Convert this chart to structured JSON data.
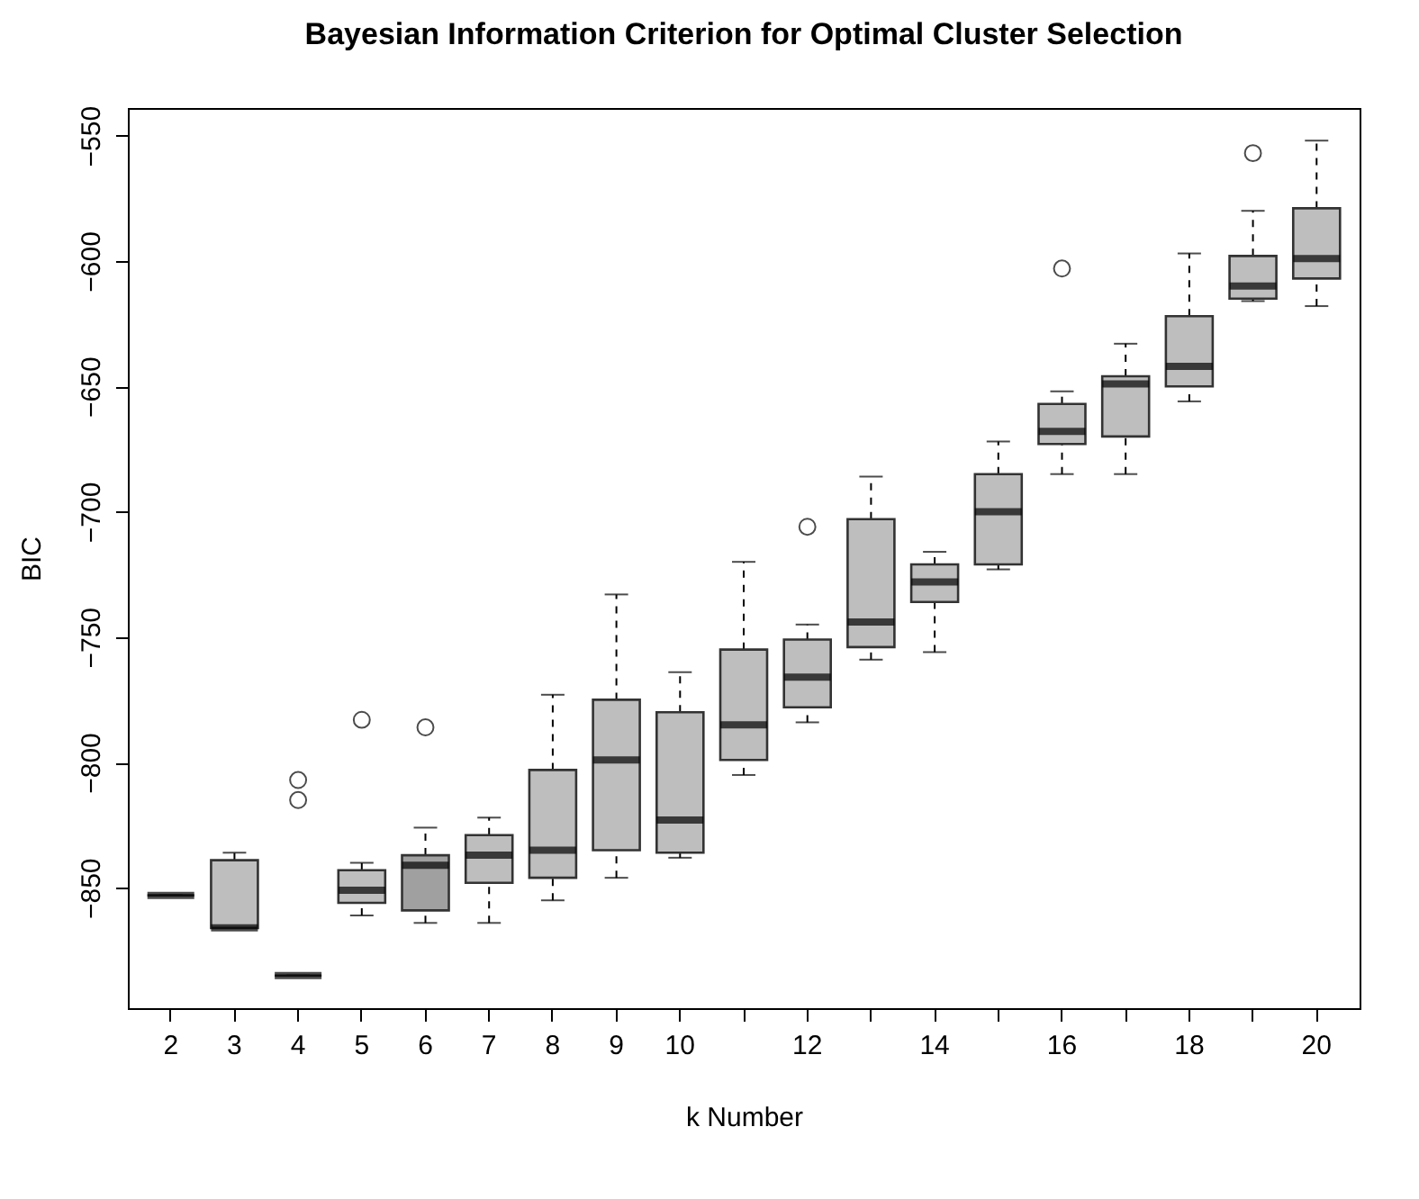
{
  "chart_data": {
    "type": "box",
    "title": "Bayesian Information Criterion for Optimal Cluster Selection",
    "xlabel": "k Number",
    "ylabel": "BIC",
    "categories": [
      "2",
      "3",
      "4",
      "5",
      "6",
      "7",
      "8",
      "9",
      "10",
      null,
      "12",
      null,
      "14",
      null,
      "16",
      null,
      "18",
      null,
      "20"
    ],
    "colors": [
      "#000000",
      "#bebebe",
      "#000000",
      "#bebebe",
      "#a0a0a0",
      "#bebebe",
      "#bebebe",
      "#bebebe",
      "#bebebe",
      "#bebebe",
      "#bebebe",
      "#bebebe",
      "#bebebe",
      "#bebebe",
      "#bebebe",
      "#bebebe",
      "#bebebe",
      "#bebebe",
      "#bebebe"
    ],
    "boxes": [
      {
        "low": -853,
        "q1": -853,
        "median": -853,
        "q3": -853,
        "high": -853
      },
      {
        "low": -866,
        "q1": -866,
        "median": -866,
        "q3": -839,
        "high": -836
      },
      {
        "low": -885,
        "q1": -885,
        "median": -885,
        "q3": -885,
        "high": -885,
        "outliers": [
          -807,
          -815
        ]
      },
      {
        "low": -861,
        "q1": -856,
        "median": -851,
        "q3": -843,
        "high": -840,
        "outliers": [
          -783
        ]
      },
      {
        "low": -864,
        "q1": -859,
        "median": -841,
        "q3": -837,
        "high": -826,
        "outliers": [
          -786
        ]
      },
      {
        "low": -864,
        "q1": -848,
        "median": -837,
        "q3": -829,
        "high": -822
      },
      {
        "low": -855,
        "q1": -846,
        "median": -835,
        "q3": -803,
        "high": -773
      },
      {
        "low": -846,
        "q1": -835,
        "median": -799,
        "q3": -775,
        "high": -733
      },
      {
        "low": -838,
        "q1": -836,
        "median": -823,
        "q3": -780,
        "high": -764
      },
      {
        "low": -805,
        "q1": -799,
        "median": -785,
        "q3": -755,
        "high": -720
      },
      {
        "low": -784,
        "q1": -778,
        "median": -766,
        "q3": -751,
        "high": -745,
        "outliers": [
          -706
        ]
      },
      {
        "low": -759,
        "q1": -754,
        "median": -744,
        "q3": -703,
        "high": -686
      },
      {
        "low": -756,
        "q1": -736,
        "median": -728,
        "q3": -721,
        "high": -716
      },
      {
        "low": -723,
        "q1": -721,
        "median": -700,
        "q3": -685,
        "high": -672
      },
      {
        "low": -685,
        "q1": -673,
        "median": -668,
        "q3": -657,
        "high": -652,
        "outliers": [
          -603
        ]
      },
      {
        "low": -685,
        "q1": -670,
        "median": -649,
        "q3": -646,
        "high": -633
      },
      {
        "low": -656,
        "q1": -650,
        "median": -642,
        "q3": -622,
        "high": -597
      },
      {
        "low": -616,
        "q1": -615,
        "median": -610,
        "q3": -598,
        "high": -580,
        "outliers": [
          -557
        ]
      },
      {
        "low": -618,
        "q1": -607,
        "median": -599,
        "q3": -579,
        "high": -552
      }
    ],
    "ylim": [
      -898,
      -539
    ],
    "yticks": [
      -550,
      -600,
      -650,
      -700,
      -750,
      -800,
      -850
    ],
    "grid": false,
    "marker": "circle"
  }
}
